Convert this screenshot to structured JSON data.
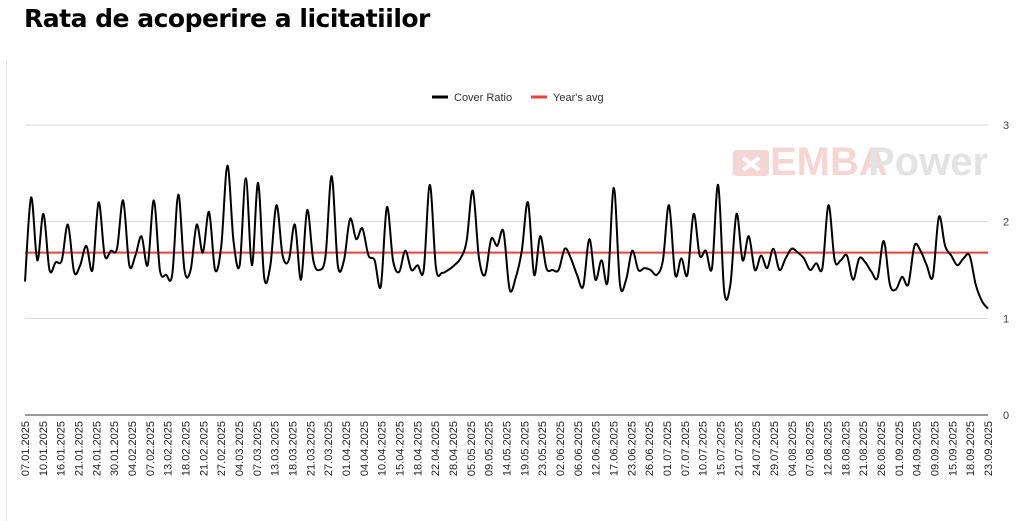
{
  "title": "Rata de acoperire a licitatiilor",
  "watermark": {
    "part1": "EMBA",
    "part2": "Power",
    "color1": "#f6d6d3",
    "color2": "#e3e3e3"
  },
  "colors": {
    "series": "#000000",
    "avg": "#e5453a",
    "grid": "#d9d9d9",
    "axis": "#333333"
  },
  "chart_data": {
    "type": "line",
    "title": "Rata de acoperire a licitatiilor",
    "xlabel": "",
    "ylabel": "",
    "ylim": [
      0,
      3
    ],
    "yticks": [
      0,
      1,
      2,
      3
    ],
    "grid": true,
    "legend_position": "top-center",
    "x_tick_labels": [
      "07.01.2025",
      "10.01.2025",
      "16.01.2025",
      "21.01.2025",
      "24.01.2025",
      "30.01.2025",
      "04.02.2025",
      "07.02.2025",
      "13.02.2025",
      "18.02.2025",
      "21.02.2025",
      "27.02.2025",
      "04.03.2025",
      "07.03.2025",
      "13.03.2025",
      "18.03.2025",
      "21.03.2025",
      "27.03.2025",
      "01.04.2025",
      "04.04.2025",
      "10.04.2025",
      "15.04.2025",
      "18.04.2025",
      "22.04.2025",
      "28.04.2025",
      "05.05.2025",
      "09.05.2025",
      "14.05.2025",
      "19.05.2025",
      "23.05.2025",
      "02.06.2025",
      "06.06.2025",
      "12.06.2025",
      "17.06.2025",
      "23.06.2025",
      "26.06.2025",
      "01.07.2025",
      "07.07.2025",
      "10.07.2025",
      "15.07.2025",
      "21.07.2025",
      "24.07.2025",
      "29.07.2025",
      "04.08.2025",
      "07.08.2025",
      "12.08.2025",
      "18.08.2025",
      "21.08.2025",
      "26.08.2025",
      "01.09.2025",
      "04.09.2025",
      "09.09.2025",
      "15.09.2025",
      "18.09.2025",
      "23.09.2025"
    ],
    "series": [
      {
        "name": "Cover Ratio",
        "values": [
          1.38,
          2.25,
          1.6,
          2.08,
          1.5,
          1.58,
          1.6,
          1.97,
          1.48,
          1.55,
          1.75,
          1.5,
          2.2,
          1.65,
          1.7,
          1.72,
          2.22,
          1.55,
          1.65,
          1.85,
          1.55,
          2.22,
          1.5,
          1.45,
          1.45,
          2.28,
          1.5,
          1.5,
          1.97,
          1.68,
          2.1,
          1.5,
          1.75,
          2.58,
          1.8,
          1.55,
          2.45,
          1.55,
          2.4,
          1.42,
          1.55,
          2.17,
          1.65,
          1.6,
          1.97,
          1.4,
          2.12,
          1.6,
          1.5,
          1.65,
          2.47,
          1.55,
          1.6,
          2.03,
          1.82,
          1.93,
          1.65,
          1.6,
          1.33,
          2.15,
          1.6,
          1.48,
          1.7,
          1.5,
          1.55,
          1.5,
          2.38,
          1.52,
          1.47,
          1.5,
          1.55,
          1.62,
          1.8,
          2.32,
          1.63,
          1.45,
          1.82,
          1.75,
          1.9,
          1.3,
          1.42,
          1.7,
          2.2,
          1.45,
          1.85,
          1.52,
          1.5,
          1.5,
          1.72,
          1.62,
          1.45,
          1.33,
          1.82,
          1.4,
          1.6,
          1.38,
          2.35,
          1.35,
          1.4,
          1.7,
          1.5,
          1.52,
          1.5,
          1.45,
          1.6,
          2.17,
          1.45,
          1.62,
          1.45,
          2.08,
          1.65,
          1.7,
          1.52,
          2.38,
          1.28,
          1.35,
          2.08,
          1.6,
          1.85,
          1.5,
          1.65,
          1.52,
          1.72,
          1.5,
          1.62,
          1.72,
          1.68,
          1.62,
          1.5,
          1.57,
          1.52,
          2.17,
          1.6,
          1.6,
          1.65,
          1.4,
          1.62,
          1.58,
          1.48,
          1.42,
          1.8,
          1.35,
          1.3,
          1.43,
          1.35,
          1.75,
          1.7,
          1.55,
          1.43,
          2.05,
          1.75,
          1.65,
          1.55,
          1.62,
          1.65,
          1.35,
          1.18,
          1.1
        ]
      },
      {
        "name": "Year's avg",
        "values": [
          1.68
        ]
      }
    ]
  }
}
